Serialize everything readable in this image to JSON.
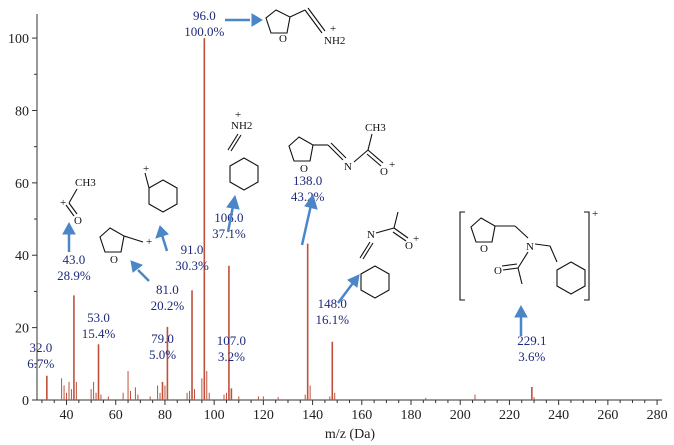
{
  "chart_data": {
    "type": "bar",
    "xlabel": "m/z (Da)",
    "ylabel": "",
    "xlim": [
      28,
      282
    ],
    "ylim": [
      0,
      105
    ],
    "xticks": [
      40,
      60,
      80,
      100,
      120,
      140,
      160,
      180,
      200,
      220,
      240,
      260,
      280
    ],
    "yticks": [
      0,
      20,
      40,
      60,
      80,
      100
    ],
    "bar_color": "#c0503a",
    "arrow_color": "#4a86c8",
    "label_color": "#1f2a7a",
    "peaks": [
      {
        "mz": 32.0,
        "rel": 6.7,
        "label_mz": "32.0",
        "label_pct": "6.7%"
      },
      {
        "mz": 43.0,
        "rel": 28.9,
        "label_mz": "43.0",
        "label_pct": "28.9%"
      },
      {
        "mz": 53.0,
        "rel": 15.4,
        "label_mz": "53.0",
        "label_pct": "15.4%"
      },
      {
        "mz": 79.0,
        "rel": 5.0,
        "label_mz": "79.0",
        "label_pct": "5.0%"
      },
      {
        "mz": 81.0,
        "rel": 20.2,
        "label_mz": "81.0",
        "label_pct": "20.2%"
      },
      {
        "mz": 91.0,
        "rel": 30.3,
        "label_mz": "91.0",
        "label_pct": "30.3%"
      },
      {
        "mz": 96.0,
        "rel": 100.0,
        "label_mz": "96.0",
        "label_pct": "100.0%"
      },
      {
        "mz": 106.0,
        "rel": 37.1,
        "label_mz": "106.0",
        "label_pct": "37.1%"
      },
      {
        "mz": 107.0,
        "rel": 3.2,
        "label_mz": "107.0",
        "label_pct": "3.2%"
      },
      {
        "mz": 138.0,
        "rel": 43.2,
        "label_mz": "138.0",
        "label_pct": "43.2%"
      },
      {
        "mz": 148.0,
        "rel": 16.1,
        "label_mz": "148.0",
        "label_pct": "16.1%"
      },
      {
        "mz": 229.1,
        "rel": 3.6,
        "label_mz": "229.1",
        "label_pct": "3.6%"
      }
    ],
    "minor_peaks": [
      {
        "mz": 38.0,
        "rel": 6.0
      },
      {
        "mz": 39.0,
        "rel": 4.0
      },
      {
        "mz": 40.0,
        "rel": 2.0
      },
      {
        "mz": 41.0,
        "rel": 5.0
      },
      {
        "mz": 42.0,
        "rel": 3.0
      },
      {
        "mz": 44.0,
        "rel": 5.0
      },
      {
        "mz": 50.0,
        "rel": 3.0
      },
      {
        "mz": 51.0,
        "rel": 5.0
      },
      {
        "mz": 52.0,
        "rel": 2.0
      },
      {
        "mz": 54.0,
        "rel": 1.5
      },
      {
        "mz": 57.0,
        "rel": 1.0
      },
      {
        "mz": 63.0,
        "rel": 2.0
      },
      {
        "mz": 65.0,
        "rel": 8.0
      },
      {
        "mz": 66.0,
        "rel": 2.5
      },
      {
        "mz": 68.0,
        "rel": 3.5
      },
      {
        "mz": 69.0,
        "rel": 1.5
      },
      {
        "mz": 74.0,
        "rel": 1.0
      },
      {
        "mz": 77.0,
        "rel": 4.0
      },
      {
        "mz": 78.0,
        "rel": 2.0
      },
      {
        "mz": 80.0,
        "rel": 4.0
      },
      {
        "mz": 89.0,
        "rel": 2.0
      },
      {
        "mz": 90.0,
        "rel": 2.5
      },
      {
        "mz": 92.0,
        "rel": 3.0
      },
      {
        "mz": 95.0,
        "rel": 6.0
      },
      {
        "mz": 97.0,
        "rel": 8.0
      },
      {
        "mz": 98.0,
        "rel": 2.0
      },
      {
        "mz": 104.0,
        "rel": 1.5
      },
      {
        "mz": 105.0,
        "rel": 2.0
      },
      {
        "mz": 110.0,
        "rel": 1.0
      },
      {
        "mz": 118.0,
        "rel": 1.0
      },
      {
        "mz": 120.0,
        "rel": 1.0
      },
      {
        "mz": 126.0,
        "rel": 0.8
      },
      {
        "mz": 137.0,
        "rel": 1.5
      },
      {
        "mz": 139.0,
        "rel": 4.0
      },
      {
        "mz": 147.0,
        "rel": 1.0
      },
      {
        "mz": 149.0,
        "rel": 2.0
      },
      {
        "mz": 186.0,
        "rel": 0.6
      },
      {
        "mz": 206.0,
        "rel": 1.5
      },
      {
        "mz": 230.0,
        "rel": 0.8
      }
    ],
    "structures": {
      "f96": {
        "label": "NH2",
        "charge": "+"
      },
      "f106": {
        "label": "NH2",
        "charge": "+"
      },
      "f138": {
        "n": "N",
        "o": "O",
        "ch3": "CH3",
        "charge": "+"
      },
      "f148": {
        "n": "N",
        "o": "O",
        "charge": "+"
      },
      "f43": {
        "o": "O",
        "ch3": "CH3",
        "charge": "+"
      },
      "f81": {
        "o": "O",
        "charge": "+"
      },
      "f91": {
        "charge": "+"
      },
      "f229": {
        "n": "N",
        "o": "O",
        "charge": "+"
      }
    }
  }
}
